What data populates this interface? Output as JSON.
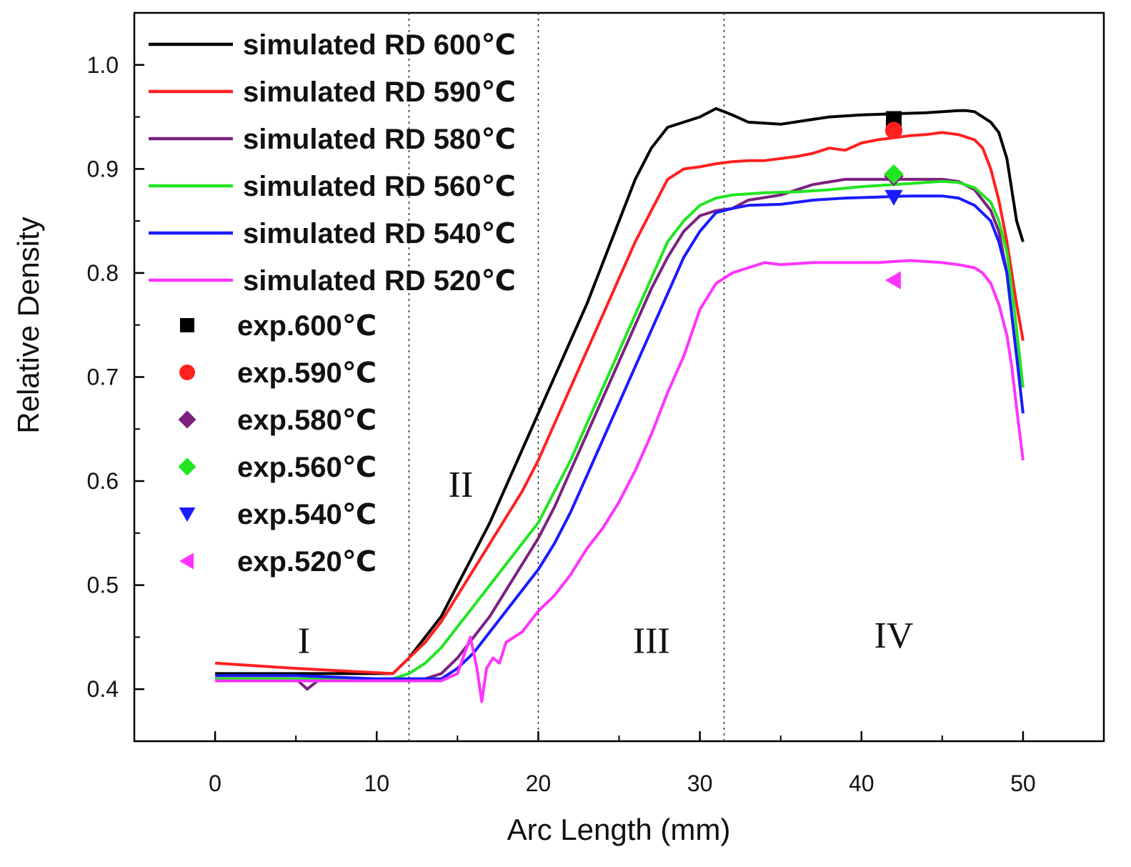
{
  "chart_data": {
    "type": "line",
    "xlabel": "Arc Length (mm)",
    "ylabel": "Relative Density",
    "xlim": [
      -5,
      55
    ],
    "ylim": [
      0.35,
      1.05
    ],
    "xticks": [
      "0",
      "10",
      "20",
      "30",
      "40",
      "50"
    ],
    "yticks": [
      "0.4",
      "0.5",
      "0.6",
      "0.7",
      "0.8",
      "0.9",
      "1.0"
    ],
    "grid": false,
    "legend_position": "top-left",
    "dividers_x": [
      12,
      20,
      31.5
    ],
    "regions": [
      {
        "label": "I",
        "x": 5.5,
        "y": 0.435
      },
      {
        "label": "II",
        "x": 15.2,
        "y": 0.585
      },
      {
        "label": "III",
        "x": 27,
        "y": 0.435
      },
      {
        "label": "IV",
        "x": 42,
        "y": 0.44
      }
    ],
    "series": [
      {
        "name": "simulated RD 600℃",
        "color": "#000000",
        "x": [
          0,
          5,
          11,
          12,
          13,
          14,
          15,
          16,
          17,
          18,
          19,
          20,
          21,
          22,
          23,
          24,
          25,
          26,
          27,
          28,
          29,
          30,
          31,
          32,
          33,
          35,
          38,
          40,
          42,
          44,
          45,
          46,
          46.5,
          47,
          47.5,
          48,
          48.5,
          49,
          49.3,
          49.6,
          50
        ],
        "y": [
          0.415,
          0.415,
          0.415,
          0.43,
          0.45,
          0.47,
          0.5,
          0.53,
          0.56,
          0.595,
          0.63,
          0.665,
          0.7,
          0.735,
          0.77,
          0.81,
          0.85,
          0.89,
          0.92,
          0.94,
          0.945,
          0.95,
          0.958,
          0.952,
          0.945,
          0.943,
          0.95,
          0.952,
          0.953,
          0.954,
          0.955,
          0.956,
          0.956,
          0.955,
          0.95,
          0.945,
          0.935,
          0.91,
          0.88,
          0.85,
          0.83
        ]
      },
      {
        "name": "simulated RD 590℃",
        "color": "#ff2020",
        "x": [
          0,
          5,
          11,
          12,
          13,
          14,
          15,
          16,
          17,
          18,
          19,
          20,
          21,
          22,
          23,
          24,
          25,
          26,
          27,
          28,
          29,
          30,
          31,
          32,
          33,
          34,
          35,
          36,
          37,
          38,
          39,
          40,
          41,
          42,
          43,
          44,
          45,
          46,
          47,
          47.5,
          48,
          48.5,
          49,
          49.3,
          49.6,
          50
        ],
        "y": [
          0.425,
          0.42,
          0.415,
          0.43,
          0.445,
          0.465,
          0.49,
          0.515,
          0.54,
          0.565,
          0.59,
          0.62,
          0.655,
          0.69,
          0.725,
          0.76,
          0.795,
          0.83,
          0.86,
          0.89,
          0.9,
          0.902,
          0.905,
          0.907,
          0.908,
          0.908,
          0.91,
          0.912,
          0.915,
          0.92,
          0.918,
          0.925,
          0.928,
          0.93,
          0.932,
          0.933,
          0.935,
          0.933,
          0.928,
          0.92,
          0.9,
          0.87,
          0.83,
          0.8,
          0.77,
          0.735
        ]
      },
      {
        "name": "simulated RD 580℃",
        "color": "#7b217f",
        "x": [
          0,
          5,
          5.7,
          6.5,
          10,
          13,
          14,
          15,
          16,
          17,
          18,
          19,
          20,
          21,
          22,
          23,
          24,
          25,
          26,
          27,
          28,
          29,
          30,
          31,
          32,
          33,
          35,
          37,
          39,
          41,
          43,
          45,
          46,
          47,
          48,
          48.5,
          49,
          49.3,
          49.6,
          50
        ],
        "y": [
          0.41,
          0.41,
          0.4,
          0.41,
          0.41,
          0.41,
          0.415,
          0.43,
          0.45,
          0.47,
          0.495,
          0.52,
          0.545,
          0.575,
          0.61,
          0.645,
          0.68,
          0.715,
          0.75,
          0.785,
          0.815,
          0.84,
          0.855,
          0.86,
          0.862,
          0.87,
          0.875,
          0.885,
          0.89,
          0.89,
          0.89,
          0.89,
          0.888,
          0.88,
          0.86,
          0.84,
          0.8,
          0.76,
          0.72,
          0.69
        ]
      },
      {
        "name": "simulated RD 560℃",
        "color": "#22e522",
        "x": [
          0,
          5,
          11,
          12,
          13,
          14,
          15,
          16,
          17,
          18,
          19,
          20,
          21,
          22,
          23,
          24,
          25,
          26,
          27,
          28,
          29,
          30,
          31,
          32,
          33,
          34,
          36,
          38,
          40,
          42,
          44,
          45,
          46,
          47,
          48,
          48.5,
          49,
          49.5,
          50
        ],
        "y": [
          0.41,
          0.41,
          0.41,
          0.415,
          0.425,
          0.44,
          0.46,
          0.48,
          0.5,
          0.52,
          0.54,
          0.56,
          0.59,
          0.62,
          0.655,
          0.69,
          0.725,
          0.76,
          0.795,
          0.83,
          0.85,
          0.865,
          0.872,
          0.875,
          0.876,
          0.877,
          0.878,
          0.88,
          0.883,
          0.885,
          0.887,
          0.888,
          0.887,
          0.882,
          0.868,
          0.85,
          0.82,
          0.76,
          0.69
        ]
      },
      {
        "name": "simulated RD 540℃",
        "color": "#1a1aff",
        "x": [
          0,
          5,
          10,
          13,
          14,
          15,
          16,
          17,
          18,
          19,
          20,
          21,
          22,
          23,
          24,
          25,
          26,
          27,
          28,
          29,
          30,
          31,
          32,
          33,
          35,
          37,
          39,
          41,
          43,
          45,
          46,
          47,
          48,
          48.5,
          49,
          49.3,
          49.6,
          50
        ],
        "y": [
          0.413,
          0.413,
          0.41,
          0.41,
          0.41,
          0.42,
          0.435,
          0.455,
          0.475,
          0.495,
          0.515,
          0.54,
          0.57,
          0.605,
          0.64,
          0.675,
          0.71,
          0.745,
          0.78,
          0.815,
          0.84,
          0.858,
          0.862,
          0.865,
          0.866,
          0.87,
          0.872,
          0.873,
          0.874,
          0.874,
          0.872,
          0.865,
          0.85,
          0.83,
          0.8,
          0.76,
          0.72,
          0.665
        ]
      },
      {
        "name": "simulated RD 520℃",
        "color": "#ff33ff",
        "x": [
          0,
          5,
          10,
          14,
          15,
          15.8,
          16.2,
          16.5,
          16.8,
          17.2,
          17.6,
          18,
          19,
          20,
          21,
          22,
          23,
          24,
          25,
          26,
          27,
          28,
          29,
          30,
          31,
          32,
          33,
          34,
          35,
          37,
          39,
          41,
          43,
          45,
          46,
          47,
          47.5,
          48,
          48.5,
          49,
          49.3,
          49.6,
          50
        ],
        "y": [
          0.408,
          0.408,
          0.408,
          0.408,
          0.415,
          0.45,
          0.42,
          0.388,
          0.42,
          0.43,
          0.425,
          0.445,
          0.455,
          0.475,
          0.49,
          0.51,
          0.535,
          0.555,
          0.58,
          0.61,
          0.645,
          0.685,
          0.72,
          0.765,
          0.79,
          0.8,
          0.805,
          0.81,
          0.808,
          0.81,
          0.81,
          0.81,
          0.812,
          0.81,
          0.808,
          0.805,
          0.8,
          0.79,
          0.77,
          0.74,
          0.71,
          0.67,
          0.62
        ]
      },
      {
        "name": "exp.600℃",
        "color": "#000000",
        "marker": "square",
        "x": [
          42
        ],
        "y": [
          0.948
        ]
      },
      {
        "name": "exp.590℃",
        "color": "#ff2020",
        "marker": "circle",
        "x": [
          42
        ],
        "y": [
          0.937
        ]
      },
      {
        "name": "exp.580℃",
        "color": "#7b217f",
        "marker": "diamond",
        "x": [
          42
        ],
        "y": [
          0.893
        ]
      },
      {
        "name": "exp.560℃",
        "color": "#22e522",
        "marker": "diamond",
        "x": [
          42
        ],
        "y": [
          0.895
        ]
      },
      {
        "name": "exp.540℃",
        "color": "#1a1aff",
        "marker": "triangle-down",
        "x": [
          42
        ],
        "y": [
          0.873
        ]
      },
      {
        "name": "exp.520℃",
        "color": "#ff33ff",
        "marker": "triangle-left",
        "x": [
          42
        ],
        "y": [
          0.793
        ]
      }
    ]
  }
}
